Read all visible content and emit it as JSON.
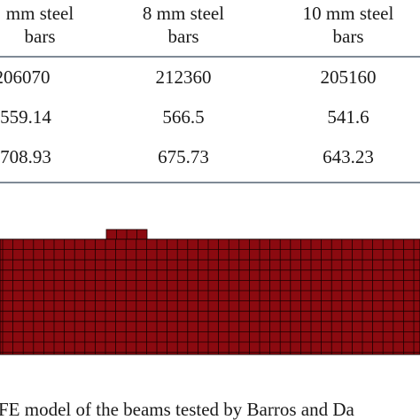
{
  "table": {
    "headers": [
      {
        "line1": "mm steel",
        "line2": "bars"
      },
      {
        "line1": "8 mm steel",
        "line2": "bars"
      },
      {
        "line1": "10 mm steel",
        "line2": "bars"
      }
    ],
    "rows": [
      [
        "206070",
        "212360",
        "205160"
      ],
      [
        "559.14",
        "566.5",
        "541.6"
      ],
      [
        "708.93",
        "675.73",
        "643.23"
      ]
    ]
  },
  "figure": {
    "mesh_color": "#8b0a10",
    "grid_color": "#1a0000",
    "caption": "FE model of the beams tested by Barros and Da"
  }
}
